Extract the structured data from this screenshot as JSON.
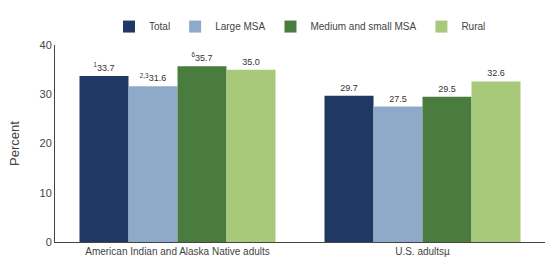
{
  "chart_data": {
    "type": "bar",
    "categories": [
      "American Indian and Alaska Native adults",
      "U.S. adultsµ"
    ],
    "series": [
      {
        "name": "Total",
        "color": "#1f3864",
        "values": [
          33.7,
          29.7
        ],
        "value_labels": [
          "33.7",
          "29.7"
        ]
      },
      {
        "name": "Large MSA",
        "color": "#8eaac8",
        "values": [
          31.6,
          27.5
        ],
        "value_labels": [
          "31.6",
          "27.5"
        ]
      },
      {
        "name": "Medium and small MSA",
        "color": "#4a7c3f",
        "values": [
          35.7,
          29.5
        ],
        "value_labels": [
          "35.7",
          "29.5"
        ]
      },
      {
        "name": "Rural",
        "color": "#a8c87a",
        "values": [
          35.0,
          32.6
        ],
        "value_labels": [
          "35.0",
          "32.6"
        ]
      }
    ],
    "annotations": [
      {
        "text": "1",
        "series": "Total",
        "category": "American Indian and Alaska Native adults"
      },
      {
        "text": "2,3",
        "series": "Large MSA",
        "category": "American Indian and Alaska Native adults"
      },
      {
        "text": "6",
        "series": "Medium and small MSA",
        "category": "American Indian and Alaska Native adults"
      }
    ],
    "ylabel": "Percent",
    "ylim": [
      0,
      40
    ],
    "yticks": [
      0,
      10,
      20,
      30,
      40
    ],
    "data_labels": true,
    "grid": false,
    "legend": "top"
  }
}
